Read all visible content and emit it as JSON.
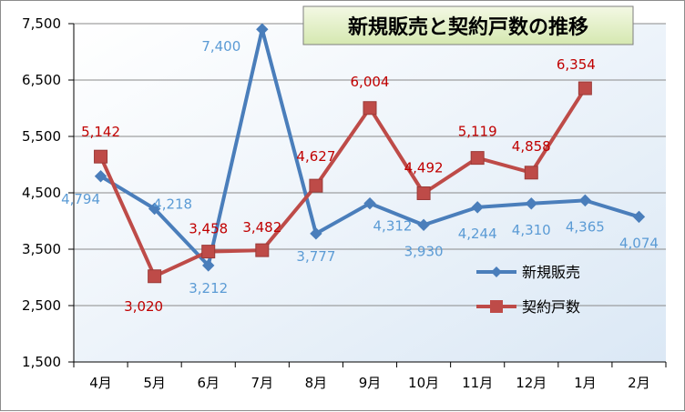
{
  "chart_data": {
    "type": "line",
    "title": "新規販売と契約戸数の推移",
    "categories": [
      "4月",
      "5月",
      "6月",
      "7月",
      "8月",
      "9月",
      "10月",
      "11月",
      "12月",
      "1月",
      "2月"
    ],
    "ylim": [
      1500,
      7500
    ],
    "yticks": [
      1500,
      2500,
      3500,
      4500,
      5500,
      6500,
      7500
    ],
    "ytick_labels": [
      "1,500",
      "2,500",
      "3,500",
      "4,500",
      "5,500",
      "6,500",
      "7,500"
    ],
    "grid": true,
    "legend_position": "right",
    "series": [
      {
        "name": "新規販売",
        "color": "#4a7ebb",
        "label_color": "#5b9bd5",
        "marker": "diamond",
        "values": [
          4794,
          4218,
          3212,
          7400,
          3777,
          4312,
          3930,
          4244,
          4310,
          4365,
          4074
        ],
        "labels": [
          "4,794",
          "4,218",
          "3,212",
          "7,400",
          "3,777",
          "4,312",
          "3,930",
          "4,244",
          "4,310",
          "4,365",
          "4,074"
        ]
      },
      {
        "name": "契約戸数",
        "color": "#be4b48",
        "label_color": "#c00000",
        "marker": "square",
        "values": [
          5142,
          3020,
          3458,
          3482,
          4627,
          6004,
          4492,
          5119,
          4858,
          6354,
          null
        ],
        "labels": [
          "5,142",
          "3,020",
          "3,458",
          "3,482",
          "4,627",
          "6,004",
          "4,492",
          "5,119",
          "4,858",
          "6,354",
          null
        ]
      }
    ]
  }
}
